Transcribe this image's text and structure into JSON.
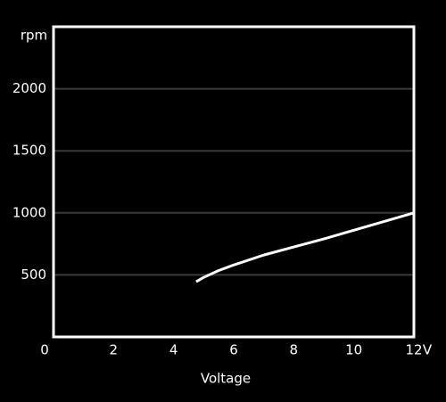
{
  "chart_data": {
    "type": "line",
    "y_label": "rpm",
    "x_label": "Voltage",
    "x_unit": "V",
    "x": [
      4.75,
      5,
      5.5,
      6,
      7,
      8,
      9,
      10,
      11,
      12
    ],
    "series": [
      {
        "color": "#ffffff",
        "values": [
          445,
          480,
          535,
          580,
          660,
          725,
          790,
          860,
          930,
          1000
        ]
      }
    ],
    "xlim": [
      0,
      12
    ],
    "xticks": [
      0,
      2,
      4,
      6,
      8,
      10,
      12
    ],
    "ylim": [
      0,
      2500
    ],
    "yticks": [
      500,
      1000,
      1500,
      2000
    ],
    "grid": true
  }
}
